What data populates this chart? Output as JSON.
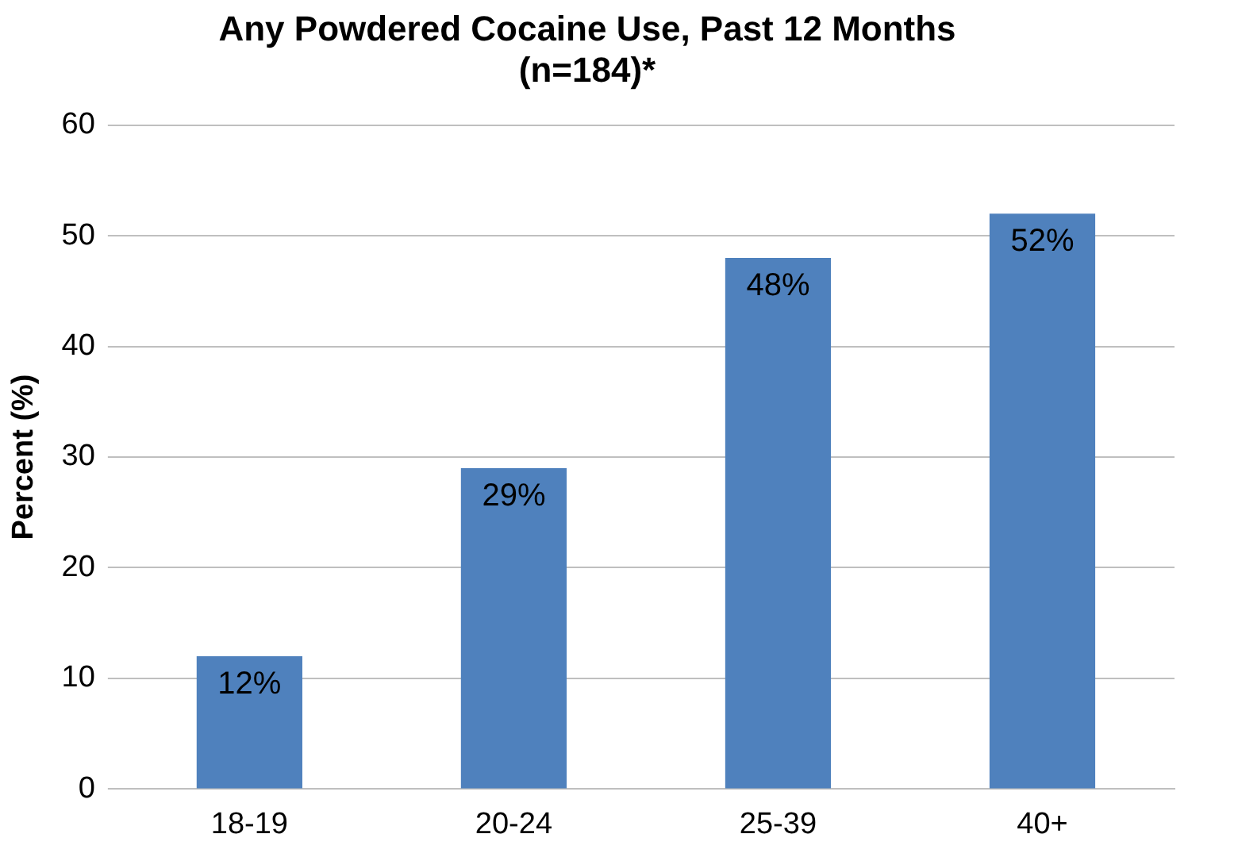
{
  "chart_data": {
    "type": "bar",
    "title": [
      "Any Powdered Cocaine Use, Past 12 Months",
      "(n=184)*"
    ],
    "ylabel": "Percent (%)",
    "categories": [
      "18-19",
      "20-24",
      "25-39",
      "40+"
    ],
    "values": [
      12,
      29,
      48,
      52
    ],
    "value_labels": [
      "12%",
      "29%",
      "48%",
      "52%"
    ],
    "color": "#4f81bd",
    "ylim": [
      0,
      60
    ],
    "yticks": [
      0,
      10,
      20,
      30,
      40,
      50,
      60
    ],
    "grid": "y",
    "legend": false
  }
}
